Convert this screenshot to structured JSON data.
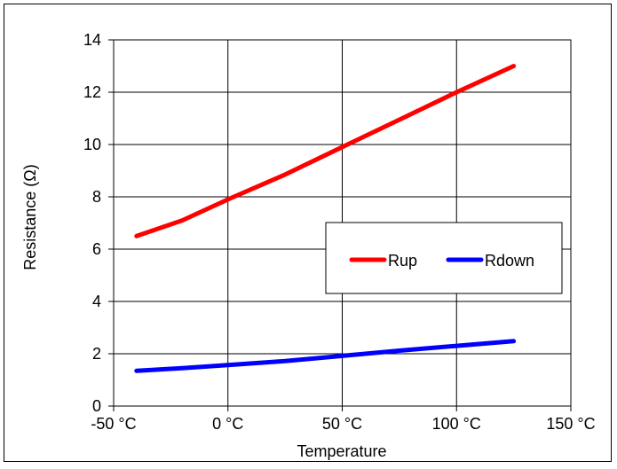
{
  "chart_data": {
    "type": "line",
    "title": "",
    "xlabel": "Temperature",
    "ylabel": "Resistance (Ω)",
    "xlim": [
      -50,
      150
    ],
    "ylim": [
      0,
      14
    ],
    "x_ticks": [
      -50,
      0,
      50,
      100,
      150
    ],
    "x_tick_labels": [
      "-50 °C",
      "0 °C",
      "50 °C",
      "100 °C",
      "150 °C"
    ],
    "y_ticks": [
      0,
      2,
      4,
      6,
      8,
      10,
      12,
      14
    ],
    "y_tick_labels": [
      "0",
      "2",
      "4",
      "6",
      "8",
      "10",
      "12",
      "14"
    ],
    "grid": true,
    "legend_position": "center-right",
    "series": [
      {
        "name": "Rup",
        "color": "#ff0000",
        "points": [
          {
            "x": -40,
            "y": 6.5
          },
          {
            "x": -20,
            "y": 7.1
          },
          {
            "x": 0,
            "y": 7.9
          },
          {
            "x": 25,
            "y": 8.85
          },
          {
            "x": 50,
            "y": 9.9
          },
          {
            "x": 75,
            "y": 10.95
          },
          {
            "x": 100,
            "y": 12.0
          },
          {
            "x": 125,
            "y": 13.0
          }
        ]
      },
      {
        "name": "Rdown",
        "color": "#0000ff",
        "points": [
          {
            "x": -40,
            "y": 1.35
          },
          {
            "x": -20,
            "y": 1.45
          },
          {
            "x": 0,
            "y": 1.57
          },
          {
            "x": 25,
            "y": 1.72
          },
          {
            "x": 50,
            "y": 1.92
          },
          {
            "x": 75,
            "y": 2.12
          },
          {
            "x": 100,
            "y": 2.3
          },
          {
            "x": 125,
            "y": 2.48
          }
        ]
      }
    ]
  }
}
